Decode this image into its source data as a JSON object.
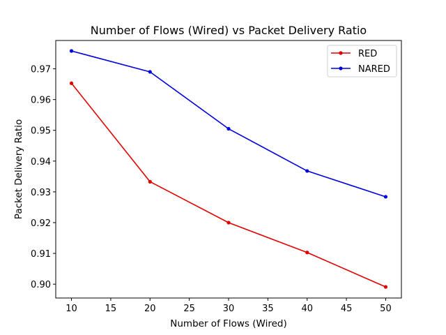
{
  "chart_data": {
    "type": "line",
    "title": "Number of Flows (Wired)  vs Packet Delivery Ratio",
    "xlabel": "Number of Flows (Wired)",
    "ylabel": "Packet Delivery Ratio",
    "x": [
      10,
      20,
      30,
      40,
      50
    ],
    "xlim": [
      8,
      52
    ],
    "ylim": [
      0.8955,
      0.9792
    ],
    "xticks": [
      10,
      15,
      20,
      25,
      30,
      35,
      40,
      45,
      50
    ],
    "xtick_labels": [
      "10",
      "15",
      "20",
      "25",
      "30",
      "35",
      "40",
      "45",
      "50"
    ],
    "yticks": [
      0.9,
      0.91,
      0.92,
      0.93,
      0.94,
      0.95,
      0.96,
      0.97
    ],
    "ytick_labels": [
      "0.90",
      "0.91",
      "0.92",
      "0.93",
      "0.94",
      "0.95",
      "0.96",
      "0.97"
    ],
    "grid": false,
    "legend_position": "top-right",
    "series": [
      {
        "name": "RED",
        "color": "#e00000",
        "marker": "dot",
        "values": [
          0.9653,
          0.9333,
          0.92,
          0.9103,
          0.8991
        ]
      },
      {
        "name": "NARED",
        "color": "#0000e0",
        "marker": "dot",
        "values": [
          0.9758,
          0.969,
          0.9505,
          0.9368,
          0.9284
        ]
      }
    ]
  }
}
